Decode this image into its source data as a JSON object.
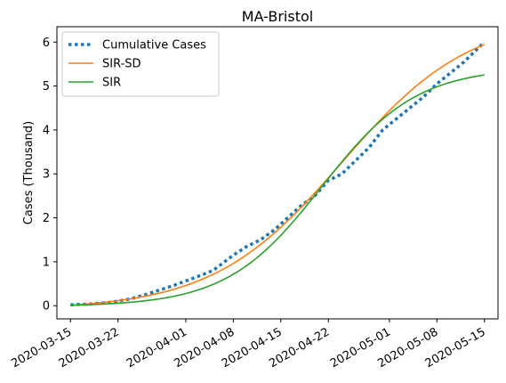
{
  "chart_data": {
    "type": "line",
    "title": "MA-Bristol",
    "xlabel": "",
    "ylabel": "Cases (Thousand)",
    "x_ticks": [
      "2020-03-15",
      "2020-03-22",
      "2020-04-01",
      "2020-04-08",
      "2020-04-15",
      "2020-04-22",
      "2020-05-01",
      "2020-05-08",
      "2020-05-15"
    ],
    "y_ticks": [
      0,
      1,
      2,
      3,
      4,
      5,
      6
    ],
    "xlim": [
      "2020-03-13",
      "2020-05-17"
    ],
    "ylim": [
      -0.3,
      6.35
    ],
    "grid": false,
    "legend_position": "top-left",
    "series": [
      {
        "name": "Cumulative Cases",
        "style": "dotted",
        "color": "#1f77b4",
        "x": [
          "2020-03-15",
          "2020-03-18",
          "2020-03-21",
          "2020-03-24",
          "2020-03-27",
          "2020-03-30",
          "2020-04-02",
          "2020-04-05",
          "2020-04-08",
          "2020-04-10",
          "2020-04-12",
          "2020-04-14",
          "2020-04-16",
          "2020-04-18",
          "2020-04-20",
          "2020-04-22",
          "2020-04-24",
          "2020-04-26",
          "2020-04-28",
          "2020-04-30",
          "2020-05-02",
          "2020-05-04",
          "2020-05-06",
          "2020-05-08",
          "2020-05-10",
          "2020-05-12",
          "2020-05-15"
        ],
        "values": [
          0.02,
          0.04,
          0.08,
          0.16,
          0.3,
          0.45,
          0.62,
          0.8,
          1.15,
          1.35,
          1.5,
          1.72,
          2.0,
          2.28,
          2.5,
          2.85,
          3.0,
          3.3,
          3.6,
          4.0,
          4.25,
          4.5,
          4.75,
          5.05,
          5.3,
          5.55,
          6.0
        ]
      },
      {
        "name": "SIR-SD",
        "style": "solid",
        "color": "#ff7f0e",
        "model": {
          "L": 6.7,
          "k": 0.105,
          "x0_date": "2020-04-24"
        },
        "x_start": "2020-03-15",
        "x_end": "2020-05-15"
      },
      {
        "name": "SIR",
        "style": "solid",
        "color": "#2ca02c",
        "model": {
          "L": 5.44,
          "k": 0.143,
          "x0_date": "2020-04-21"
        },
        "x_start": "2020-03-15",
        "x_end": "2020-05-15"
      }
    ]
  }
}
